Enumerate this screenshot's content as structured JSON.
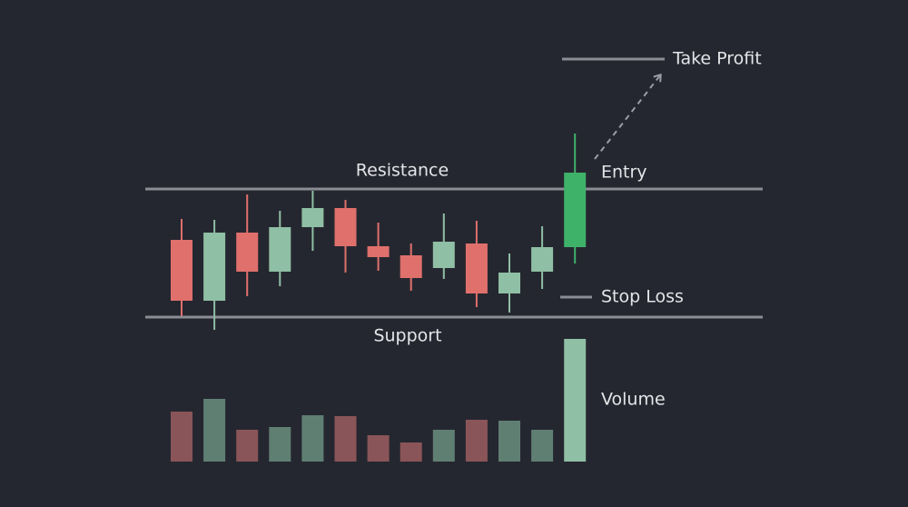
{
  "chart_data": {
    "type": "candlestick",
    "ylim": [
      0,
      360
    ],
    "open": [
      136,
      69,
      144,
      101,
      150,
      171,
      129,
      119,
      105,
      132,
      77,
      101,
      128
    ],
    "high": [
      159,
      158,
      186,
      168,
      190,
      180,
      155,
      132,
      165,
      157,
      121,
      151,
      253
    ],
    "low": [
      52,
      37,
      74,
      85,
      124,
      100,
      102,
      80,
      93,
      62,
      56,
      82,
      110
    ],
    "close": [
      69,
      144,
      101,
      150,
      171,
      129,
      117,
      94,
      134,
      77,
      100,
      128,
      210
    ],
    "colors": [
      "#e0706c",
      "#8fbfa4",
      "#e0706c",
      "#8fbfa4",
      "#8fbfa4",
      "#e0706c",
      "#e0706c",
      "#e0706c",
      "#8fbfa4",
      "#e0706c",
      "#8fbfa4",
      "#8fbfa4",
      "#3fb26a"
    ],
    "volume": {
      "label": "Volume",
      "ylim": [
        0,
        150
      ],
      "values": [
        55,
        69,
        35,
        38,
        51,
        50,
        29,
        21,
        35,
        46,
        45,
        35,
        135
      ],
      "colors": [
        "#8a5558",
        "#5f7f72",
        "#8a5558",
        "#5f7f72",
        "#5f7f72",
        "#8a5558",
        "#8a5558",
        "#8a5558",
        "#5f7f72",
        "#8a5558",
        "#5f7f72",
        "#5f7f72",
        "#8fbfa4"
      ]
    },
    "resistance": {
      "label": "Resistance",
      "value": 192
    },
    "support": {
      "label": "Support",
      "value": 51
    },
    "take_profit": {
      "label": "Take Profit",
      "value": 335
    },
    "stop_loss": {
      "label": "Stop Loss",
      "value": 73
    },
    "entry_label": "Entry"
  }
}
